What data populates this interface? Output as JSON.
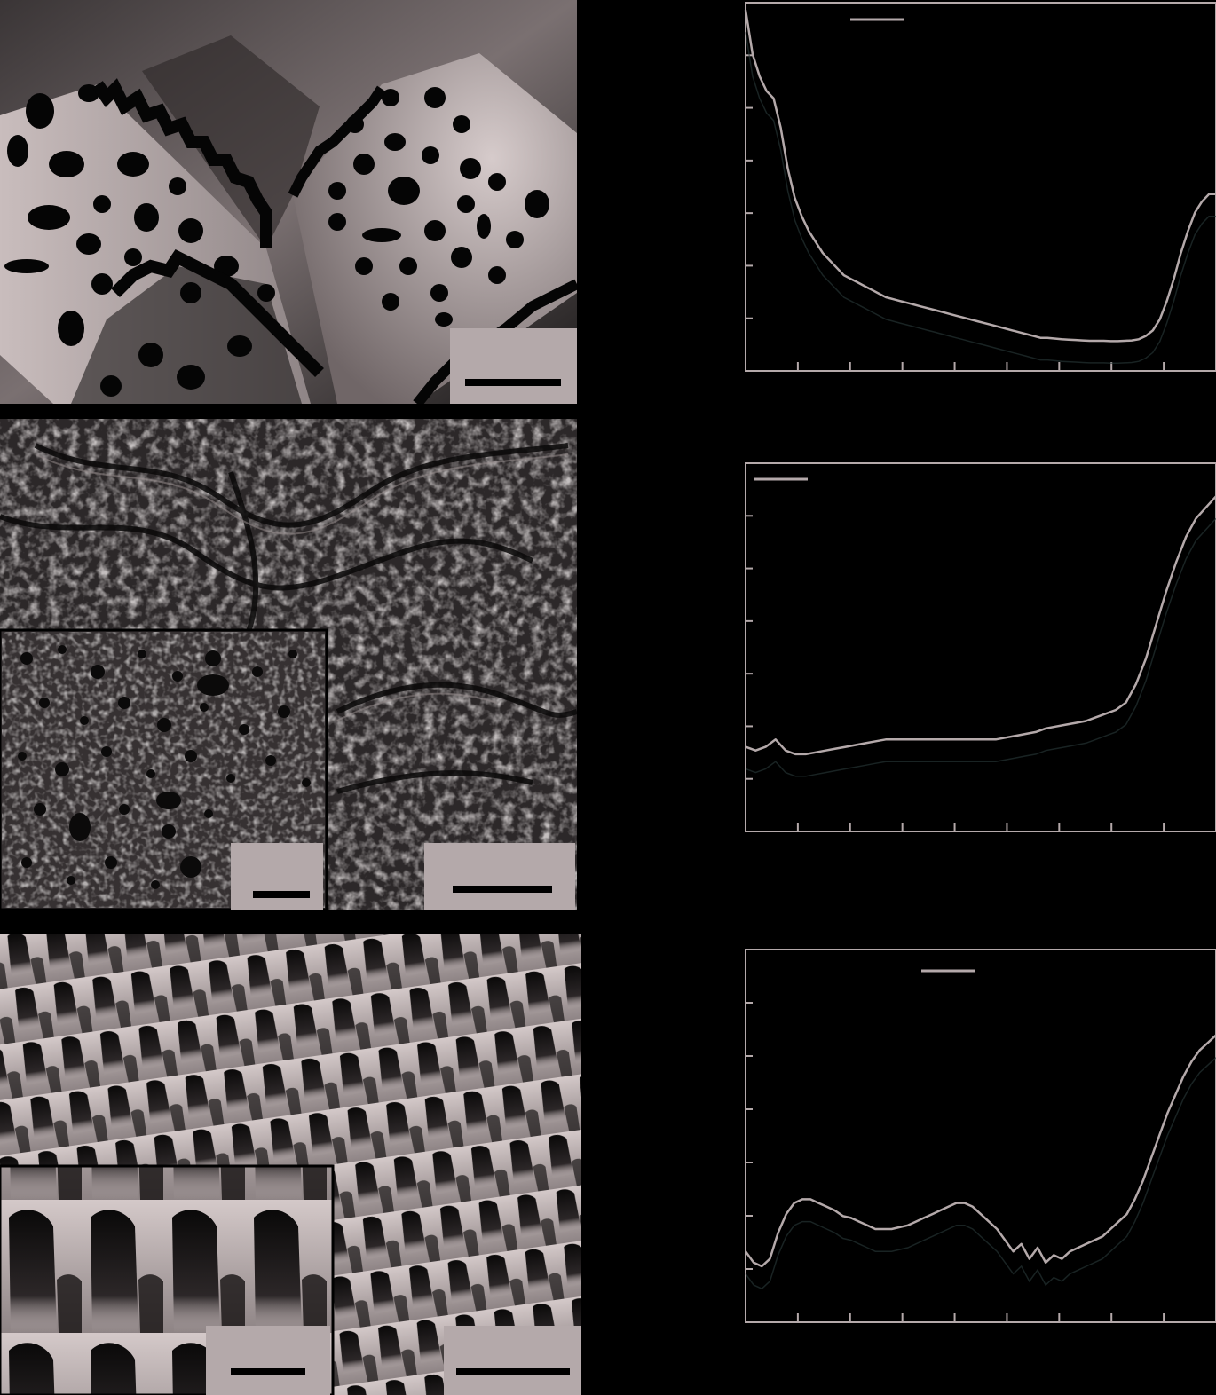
{
  "figure": {
    "colors": {
      "background": "#000000",
      "curve": "#b4a9aa",
      "scalebar_box": "#b4a9aa",
      "axis": "#b4a9aa",
      "dark_curve_tint": "#2a3a3a"
    },
    "micrographs": [
      {
        "name": "micrograph-a",
        "texture": "dotted-ridges",
        "scalebar": true
      },
      {
        "name": "micrograph-b",
        "texture": "porous-wrinkled",
        "scalebar": true,
        "inset": {
          "scalebar": true
        }
      },
      {
        "name": "micrograph-c",
        "texture": "pillar-array",
        "scalebar": true,
        "inset": {
          "scalebar": true
        }
      }
    ]
  },
  "chart_data": [
    {
      "type": "line",
      "title": "",
      "xlabel": "",
      "ylabel": "",
      "x_ticks": 9,
      "y_ticks": 6,
      "legend": "top-center",
      "grid": false,
      "series": [
        {
          "values": [
            0.98,
            0.86,
            0.8,
            0.76,
            0.74,
            0.66,
            0.55,
            0.47,
            0.42,
            0.38,
            0.35,
            0.32,
            0.3,
            0.28,
            0.26,
            0.25,
            0.24,
            0.23,
            0.22,
            0.21,
            0.2,
            0.195,
            0.19,
            0.185,
            0.18,
            0.175,
            0.17,
            0.165,
            0.16,
            0.155,
            0.15,
            0.145,
            0.14,
            0.135,
            0.13,
            0.125,
            0.12,
            0.115,
            0.11,
            0.105,
            0.1,
            0.095,
            0.09,
            0.09,
            0.088,
            0.086,
            0.085,
            0.084,
            0.083,
            0.082,
            0.082,
            0.082,
            0.081,
            0.081,
            0.082,
            0.083,
            0.086,
            0.095,
            0.11,
            0.14,
            0.19,
            0.25,
            0.32,
            0.38,
            0.43,
            0.46,
            0.48,
            0.48
          ]
        }
      ]
    },
    {
      "type": "line",
      "title": "",
      "xlabel": "",
      "ylabel": "",
      "x_ticks": 9,
      "y_ticks": 6,
      "legend": "top-left",
      "grid": false,
      "series": [
        {
          "values": [
            0.23,
            0.22,
            0.23,
            0.25,
            0.22,
            0.21,
            0.21,
            0.215,
            0.22,
            0.225,
            0.23,
            0.235,
            0.24,
            0.245,
            0.25,
            0.25,
            0.25,
            0.25,
            0.25,
            0.25,
            0.25,
            0.25,
            0.25,
            0.25,
            0.25,
            0.25,
            0.255,
            0.26,
            0.265,
            0.27,
            0.28,
            0.285,
            0.29,
            0.295,
            0.3,
            0.31,
            0.32,
            0.33,
            0.35,
            0.4,
            0.47,
            0.56,
            0.65,
            0.73,
            0.8,
            0.85,
            0.88,
            0.91
          ]
        }
      ]
    },
    {
      "type": "line",
      "title": "",
      "xlabel": "",
      "ylabel": "",
      "x_ticks": 9,
      "y_ticks": 6,
      "legend": "top-center",
      "grid": false,
      "series": [
        {
          "values": [
            0.19,
            0.16,
            0.15,
            0.17,
            0.24,
            0.29,
            0.32,
            0.33,
            0.33,
            0.32,
            0.31,
            0.3,
            0.285,
            0.28,
            0.27,
            0.26,
            0.25,
            0.25,
            0.25,
            0.255,
            0.26,
            0.27,
            0.28,
            0.29,
            0.3,
            0.31,
            0.32,
            0.32,
            0.31,
            0.29,
            0.27,
            0.25,
            0.22,
            0.19,
            0.21,
            0.17,
            0.2,
            0.16,
            0.18,
            0.17,
            0.19,
            0.2,
            0.21,
            0.22,
            0.23,
            0.25,
            0.27,
            0.29,
            0.33,
            0.38,
            0.44,
            0.5,
            0.56,
            0.61,
            0.66,
            0.7,
            0.73,
            0.75,
            0.77
          ]
        }
      ]
    }
  ]
}
